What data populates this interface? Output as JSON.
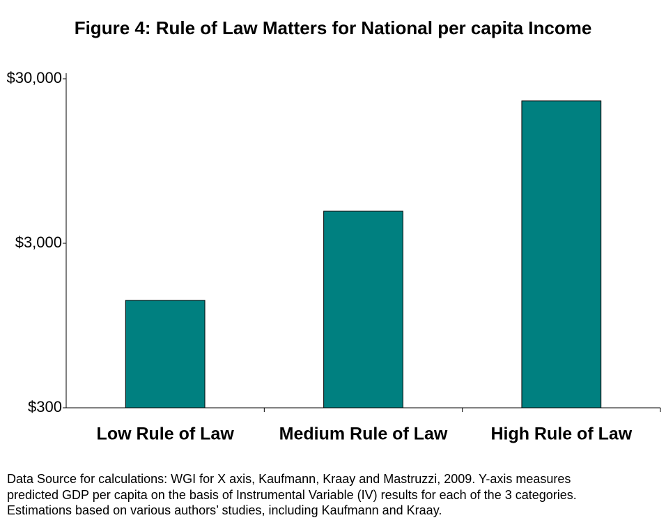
{
  "chart_data": {
    "type": "bar",
    "title": "Figure 4: Rule of Law Matters for National per capita Income",
    "categories": [
      "Low Rule of Law",
      "Medium Rule of Law",
      "High Rule of Law"
    ],
    "values": [
      1350,
      4700,
      22000
    ],
    "color": "#008080",
    "log_scale": true,
    "ylim": [
      300,
      30000
    ],
    "yticks": [
      {
        "value": 300,
        "label": "$300"
      },
      {
        "value": 3000,
        "label": "$3,000"
      },
      {
        "value": 30000,
        "label": "$30,000"
      }
    ],
    "grid": false,
    "footnote": [
      "Data Source for calculations: WGI for X axis, Kaufmann, Kraay and Mastruzzi, 2009. Y-axis measures",
      "predicted GDP per capita on the basis of Instrumental Variable (IV) results for each of the 3 categories.",
      "Estimations based on various authors’ studies, including Kaufmann and Kraay."
    ]
  }
}
